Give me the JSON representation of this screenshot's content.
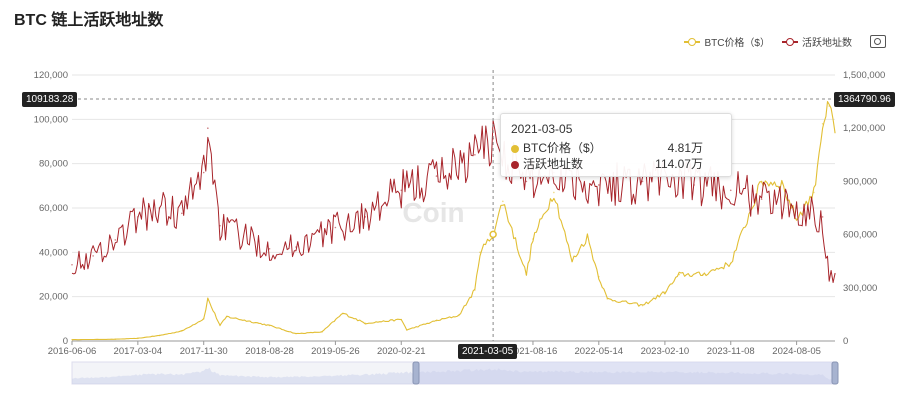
{
  "title": "BTC 链上活跃地址数",
  "legend": {
    "items": [
      {
        "label": "BTC价格（$）",
        "color": "#e2bf35"
      },
      {
        "label": "活跃地址数",
        "color": "#a8252b"
      }
    ],
    "camera_icon": "camera-icon"
  },
  "watermark": "Coin",
  "chart_data": {
    "type": "line",
    "x_tick_labels": [
      "2016-06-06",
      "2017-03-04",
      "2017-11-30",
      "2018-08-28",
      "2019-05-26",
      "2020-02-21",
      "2021-08-16",
      "2022-05-14",
      "2023-02-10",
      "2023-11-08",
      "2024-08-05"
    ],
    "x_range": [
      "2016-06-06",
      "2025-01-10"
    ],
    "y_left": {
      "range": [
        0,
        120000
      ],
      "ticks": [
        "0",
        "20,000",
        "40,000",
        "60,000",
        "80,000",
        "100,000",
        "120,000"
      ]
    },
    "y_right": {
      "range": [
        0,
        1500000
      ],
      "ticks": [
        "0",
        "300,000",
        "600,000",
        "900,000",
        "1,200,000",
        "1,500,000"
      ]
    },
    "grid": true,
    "legend_position": "top-right",
    "series": [
      {
        "name": "BTC价格（$）",
        "axis": "left",
        "color": "#e2bf35",
        "points": [
          [
            "2016-06-06",
            600
          ],
          [
            "2016-12-01",
            800
          ],
          [
            "2017-03-04",
            1200
          ],
          [
            "2017-06-01",
            2500
          ],
          [
            "2017-09-01",
            4500
          ],
          [
            "2017-11-30",
            10000
          ],
          [
            "2017-12-17",
            19000
          ],
          [
            "2018-02-05",
            7000
          ],
          [
            "2018-03-05",
            11000
          ],
          [
            "2018-08-28",
            7000
          ],
          [
            "2018-12-15",
            3300
          ],
          [
            "2019-04-01",
            4100
          ],
          [
            "2019-06-26",
            12500
          ],
          [
            "2019-09-26",
            8000
          ],
          [
            "2020-02-21",
            9700
          ],
          [
            "2020-03-15",
            5000
          ],
          [
            "2020-07-15",
            9200
          ],
          [
            "2020-10-15",
            11500
          ],
          [
            "2020-12-20",
            23000
          ],
          [
            "2021-01-10",
            40000
          ],
          [
            "2021-03-05",
            48100
          ],
          [
            "2021-04-14",
            63000
          ],
          [
            "2021-07-20",
            30000
          ],
          [
            "2021-08-16",
            46000
          ],
          [
            "2021-11-10",
            67000
          ],
          [
            "2022-01-24",
            36000
          ],
          [
            "2022-03-28",
            47000
          ],
          [
            "2022-05-14",
            29000
          ],
          [
            "2022-06-18",
            19000
          ],
          [
            "2022-11-10",
            16000
          ],
          [
            "2023-02-10",
            22000
          ],
          [
            "2023-04-10",
            30000
          ],
          [
            "2023-07-15",
            30000
          ],
          [
            "2023-11-08",
            35000
          ],
          [
            "2024-03-14",
            72000
          ],
          [
            "2024-06-05",
            71000
          ],
          [
            "2024-08-05",
            55000
          ],
          [
            "2024-10-15",
            67000
          ],
          [
            "2024-11-20",
            98000
          ],
          [
            "2024-12-17",
            106000
          ],
          [
            "2025-01-10",
            94000
          ]
        ]
      },
      {
        "name": "活跃地址数",
        "axis": "right",
        "color": "#a8252b",
        "points": [
          [
            "2016-06-06",
            430000
          ],
          [
            "2016-09-01",
            480000
          ],
          [
            "2016-12-01",
            570000
          ],
          [
            "2017-03-04",
            700000
          ],
          [
            "2017-06-01",
            750000
          ],
          [
            "2017-09-01",
            720000
          ],
          [
            "2017-11-30",
            950000
          ],
          [
            "2017-12-17",
            1200000
          ],
          [
            "2018-02-05",
            650000
          ],
          [
            "2018-08-28",
            520000
          ],
          [
            "2018-12-15",
            530000
          ],
          [
            "2019-05-26",
            640000
          ],
          [
            "2019-09-26",
            700000
          ],
          [
            "2020-02-21",
            850000
          ],
          [
            "2020-07-15",
            930000
          ],
          [
            "2020-12-20",
            1050000
          ],
          [
            "2021-03-05",
            1140700
          ],
          [
            "2021-07-20",
            900000
          ],
          [
            "2021-11-10",
            950000
          ],
          [
            "2022-05-14",
            880000
          ],
          [
            "2022-11-10",
            900000
          ],
          [
            "2023-02-10",
            930000
          ],
          [
            "2023-06-10",
            880000
          ],
          [
            "2023-11-08",
            850000
          ],
          [
            "2024-03-14",
            800000
          ],
          [
            "2024-08-05",
            750000
          ],
          [
            "2024-11-20",
            700000
          ],
          [
            "2024-12-17",
            350000
          ],
          [
            "2025-01-10",
            380000
          ]
        ]
      }
    ],
    "crosshair": {
      "x_label": "2021-03-05",
      "left_value_label": "109183.28",
      "right_value_label": "1364790.96"
    },
    "tooltip": {
      "date": "2021-03-05",
      "rows": [
        {
          "label": "BTC价格（$）",
          "value": "4.81万"
        },
        {
          "label": "活跃地址数",
          "value": "114.07万"
        }
      ]
    }
  }
}
